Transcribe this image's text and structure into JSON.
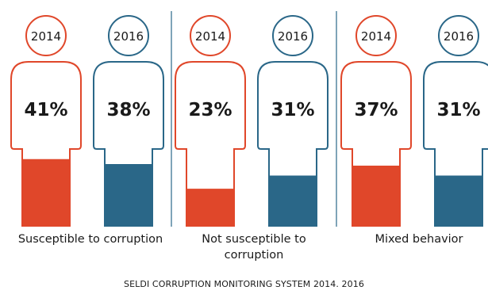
{
  "colors": {
    "y2014": "#e0472a",
    "y2016": "#2a6788",
    "divider": "#2a6788",
    "text": "#1a1a1a"
  },
  "chart_data": {
    "type": "bar",
    "title": "",
    "categories": [
      "Susceptible to corruption",
      "Not susceptible to corruption",
      "Mixed behavior"
    ],
    "series": [
      {
        "name": "2014",
        "values": [
          41,
          23,
          37
        ]
      },
      {
        "name": "2016",
        "values": [
          38,
          31,
          31
        ]
      }
    ],
    "unit": "%",
    "ylim": [
      0,
      100
    ]
  },
  "labels": {
    "cat1": "Susceptible to corruption",
    "cat2_line1": "Not susceptible to",
    "cat2_line2": "corruption",
    "cat3": "Mixed behavior"
  },
  "source": "SELDI CORRUPTION MONITORING SYSTEM 2014. 2016"
}
